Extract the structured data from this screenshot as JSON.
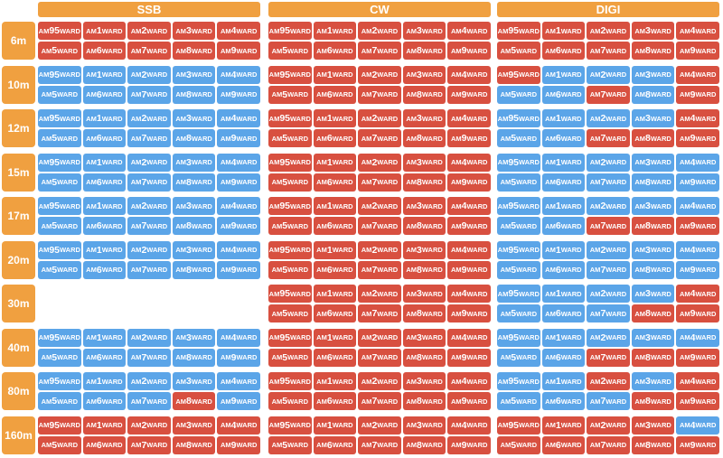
{
  "colors": {
    "header": "#f0a040",
    "worked": "#5ba5e8",
    "needed": "#d85040"
  },
  "modes": [
    "SSB",
    "CW",
    "DIGI"
  ],
  "stations": [
    {
      "prefix": "AM",
      "number": "95",
      "suffix": "WARD"
    },
    {
      "prefix": "AM",
      "number": "1",
      "suffix": "WARD"
    },
    {
      "prefix": "AM",
      "number": "2",
      "suffix": "WARD"
    },
    {
      "prefix": "AM",
      "number": "3",
      "suffix": "WARD"
    },
    {
      "prefix": "AM",
      "number": "4",
      "suffix": "WARD"
    },
    {
      "prefix": "AM",
      "number": "5",
      "suffix": "WARD"
    },
    {
      "prefix": "AM",
      "number": "6",
      "suffix": "WARD"
    },
    {
      "prefix": "AM",
      "number": "7",
      "suffix": "WARD"
    },
    {
      "prefix": "AM",
      "number": "8",
      "suffix": "WARD"
    },
    {
      "prefix": "AM",
      "number": "9",
      "suffix": "WARD"
    }
  ],
  "bands": [
    {
      "label": "6m",
      "status": [
        [
          0,
          0,
          0,
          0,
          0,
          0,
          0,
          0,
          0,
          0
        ],
        [
          0,
          0,
          0,
          0,
          0,
          0,
          0,
          0,
          0,
          0
        ],
        [
          0,
          0,
          0,
          0,
          0,
          0,
          0,
          0,
          0,
          0
        ]
      ]
    },
    {
      "label": "10m",
      "status": [
        [
          1,
          1,
          1,
          1,
          1,
          1,
          1,
          1,
          1,
          1
        ],
        [
          0,
          0,
          0,
          0,
          0,
          0,
          0,
          0,
          0,
          0
        ],
        [
          0,
          1,
          1,
          1,
          0,
          1,
          1,
          0,
          1,
          0
        ]
      ]
    },
    {
      "label": "12m",
      "status": [
        [
          1,
          1,
          1,
          1,
          1,
          1,
          1,
          1,
          1,
          1
        ],
        [
          0,
          0,
          0,
          0,
          0,
          0,
          0,
          0,
          0,
          0
        ],
        [
          1,
          1,
          1,
          1,
          0,
          1,
          1,
          0,
          0,
          0
        ]
      ]
    },
    {
      "label": "15m",
      "status": [
        [
          1,
          1,
          1,
          1,
          1,
          1,
          1,
          1,
          1,
          1
        ],
        [
          0,
          0,
          0,
          0,
          0,
          0,
          0,
          0,
          0,
          0
        ],
        [
          1,
          1,
          1,
          1,
          1,
          1,
          1,
          1,
          1,
          1
        ]
      ]
    },
    {
      "label": "17m",
      "status": [
        [
          1,
          1,
          1,
          1,
          1,
          1,
          1,
          1,
          1,
          1
        ],
        [
          0,
          0,
          0,
          0,
          0,
          0,
          0,
          0,
          0,
          0
        ],
        [
          1,
          1,
          1,
          1,
          1,
          1,
          1,
          0,
          0,
          0
        ]
      ]
    },
    {
      "label": "20m",
      "status": [
        [
          1,
          1,
          1,
          1,
          1,
          1,
          1,
          1,
          1,
          1
        ],
        [
          0,
          0,
          0,
          0,
          0,
          0,
          0,
          0,
          0,
          0
        ],
        [
          1,
          1,
          1,
          1,
          1,
          1,
          1,
          1,
          1,
          1
        ]
      ]
    },
    {
      "label": "30m",
      "status": [
        null,
        [
          0,
          0,
          0,
          0,
          0,
          0,
          0,
          0,
          0,
          0
        ],
        [
          1,
          1,
          1,
          1,
          0,
          1,
          1,
          1,
          0,
          0
        ]
      ]
    },
    {
      "label": "40m",
      "status": [
        [
          1,
          1,
          1,
          1,
          1,
          1,
          1,
          1,
          1,
          1
        ],
        [
          0,
          0,
          0,
          0,
          0,
          0,
          0,
          0,
          0,
          0
        ],
        [
          1,
          1,
          1,
          1,
          1,
          1,
          1,
          0,
          0,
          0
        ]
      ]
    },
    {
      "label": "80m",
      "status": [
        [
          1,
          1,
          1,
          1,
          1,
          1,
          1,
          1,
          0,
          1
        ],
        [
          0,
          0,
          0,
          0,
          0,
          0,
          0,
          0,
          0,
          0
        ],
        [
          1,
          1,
          0,
          1,
          0,
          1,
          1,
          1,
          0,
          0
        ]
      ]
    },
    {
      "label": "160m",
      "status": [
        [
          0,
          0,
          0,
          0,
          0,
          0,
          0,
          0,
          0,
          0
        ],
        [
          0,
          0,
          0,
          0,
          0,
          0,
          0,
          0,
          0,
          0
        ],
        [
          0,
          0,
          0,
          0,
          1,
          0,
          0,
          0,
          0,
          0
        ]
      ]
    }
  ]
}
